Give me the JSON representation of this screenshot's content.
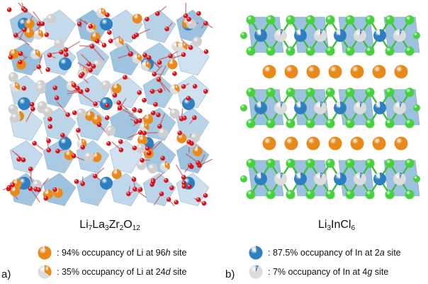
{
  "panel_a": {
    "label": "a)",
    "formula": {
      "p1": "Li",
      "s1": "7",
      "p2": "La",
      "s2": "3",
      "p3": "Zr",
      "s3": "2",
      "p4": "O",
      "s4": "12"
    },
    "legend": [
      {
        "pre": ": 94% occupancy of Li at 96",
        "site": "h",
        "post": " site",
        "occupancy": 0.94
      },
      {
        "pre": ": 35% occupancy of Li at 24",
        "site": "d",
        "post": " site",
        "occupancy": 0.35
      }
    ],
    "colors": {
      "li": "#e8891a",
      "la": "#e4e4e4",
      "zr": "#2e7fc0",
      "o": "#d7141a",
      "polyhedron": "#4a8fc4"
    }
  },
  "panel_b": {
    "label": "b)",
    "formula": {
      "p1": "Li",
      "s1": "3",
      "p2": "InCl",
      "s2": "6"
    },
    "legend": [
      {
        "pre": ": 87.5% occupancy of In at 2",
        "site": "a",
        "post": " site",
        "occupancy": 0.875
      },
      {
        "pre": ": 7% occupancy of In at 4",
        "site": "g",
        "post": " site",
        "occupancy": 0.07
      }
    ],
    "colors": {
      "li": "#e8891a",
      "in": "#2e7fc0",
      "cl": "#45d23c",
      "vacancy": "#e6e6e6",
      "polyhedron": "#4a8fc4"
    }
  }
}
